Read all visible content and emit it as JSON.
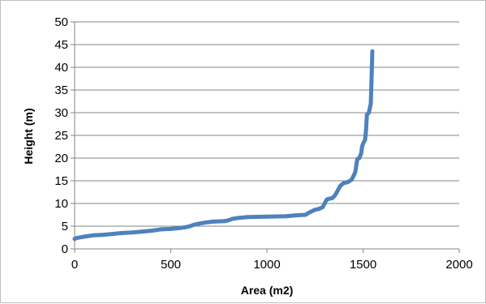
{
  "chart_data": {
    "type": "line",
    "title": "",
    "xlabel": "Area (m2)",
    "ylabel": "Height (m)",
    "xlim": [
      0,
      2000
    ],
    "ylim": [
      0,
      50
    ],
    "xticks": [
      0,
      500,
      1000,
      1500,
      2000
    ],
    "yticks": [
      0,
      5,
      10,
      15,
      20,
      25,
      30,
      35,
      40,
      45,
      50
    ],
    "grid": true,
    "legend": "none",
    "series": [
      {
        "color": "#4f81bd",
        "x": [
          0,
          10,
          50,
          100,
          150,
          200,
          250,
          300,
          350,
          400,
          450,
          500,
          550,
          580,
          600,
          620,
          640,
          680,
          720,
          780,
          800,
          820,
          850,
          900,
          1000,
          1100,
          1150,
          1200,
          1220,
          1250,
          1270,
          1290,
          1300,
          1310,
          1320,
          1340,
          1350,
          1360,
          1370,
          1380,
          1390,
          1400,
          1410,
          1420,
          1440,
          1450,
          1460,
          1465,
          1470,
          1480,
          1490,
          1495,
          1500,
          1510,
          1515,
          1520,
          1525,
          1530,
          1535,
          1540,
          1545,
          1548
        ],
        "y": [
          2.2,
          2.4,
          2.7,
          3.0,
          3.1,
          3.3,
          3.5,
          3.6,
          3.8,
          4.0,
          4.3,
          4.4,
          4.6,
          4.8,
          5.0,
          5.3,
          5.5,
          5.8,
          6.0,
          6.1,
          6.3,
          6.6,
          6.8,
          7.0,
          7.1,
          7.2,
          7.4,
          7.5,
          8.0,
          8.6,
          8.8,
          9.2,
          10.0,
          10.8,
          11.0,
          11.2,
          11.6,
          12.2,
          13.0,
          13.8,
          14.2,
          14.5,
          14.6,
          14.7,
          15.2,
          16.0,
          17.0,
          18.5,
          19.8,
          20.0,
          21.0,
          22.5,
          23.2,
          24.0,
          26.0,
          29.5,
          29.8,
          30.0,
          31.0,
          32.0,
          39.0,
          43.5
        ]
      }
    ]
  }
}
